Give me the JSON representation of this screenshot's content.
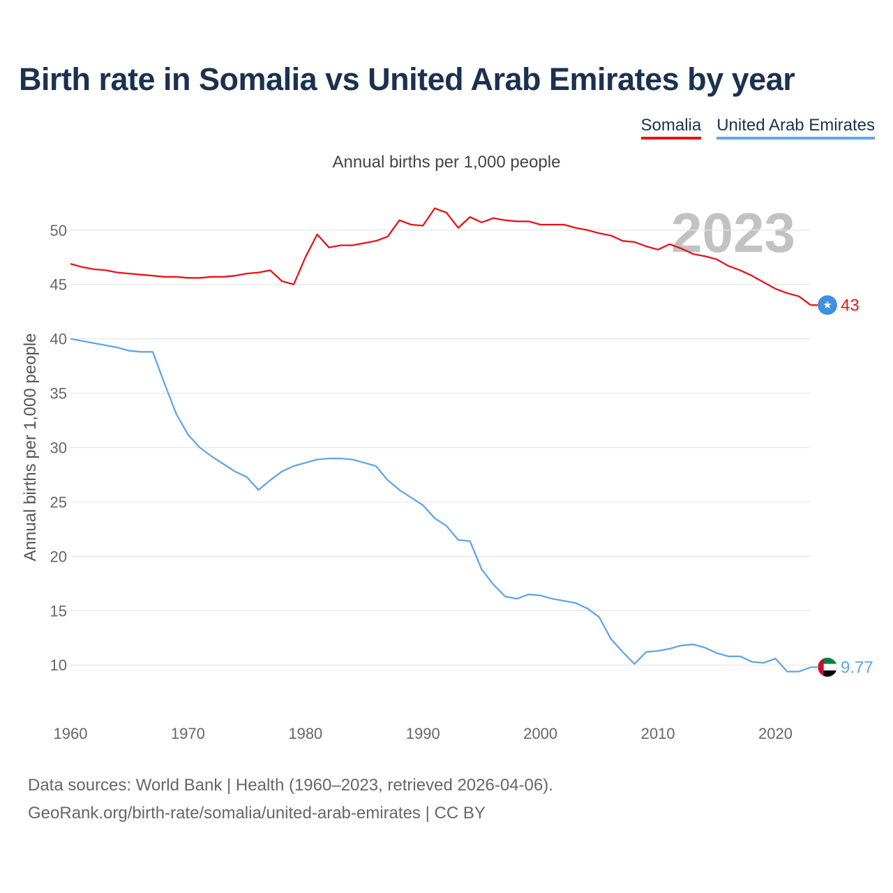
{
  "chart_data": {
    "type": "line",
    "title": "Birth rate in Somalia vs United Arab Emirates by year",
    "subtitle": "Annual births per 1,000 people",
    "ylabel": "Annual births per 1,000 people",
    "xlabel": "",
    "year_watermark": "2023",
    "xlim": [
      1960,
      2023
    ],
    "ylim": [
      7,
      53
    ],
    "x_ticks": [
      1960,
      1970,
      1980,
      1990,
      2000,
      2010,
      2020
    ],
    "y_ticks": [
      10,
      15,
      20,
      25,
      30,
      35,
      40,
      45,
      50
    ],
    "grid": true,
    "legend_position": "top-right",
    "x": [
      1960,
      1961,
      1962,
      1963,
      1964,
      1965,
      1966,
      1967,
      1968,
      1969,
      1970,
      1971,
      1972,
      1973,
      1974,
      1975,
      1976,
      1977,
      1978,
      1979,
      1980,
      1981,
      1982,
      1983,
      1984,
      1985,
      1986,
      1987,
      1988,
      1989,
      1990,
      1991,
      1992,
      1993,
      1994,
      1995,
      1996,
      1997,
      1998,
      1999,
      2000,
      2001,
      2002,
      2003,
      2004,
      2005,
      2006,
      2007,
      2008,
      2009,
      2010,
      2011,
      2012,
      2013,
      2014,
      2015,
      2016,
      2017,
      2018,
      2019,
      2020,
      2021,
      2022,
      2023
    ],
    "series": [
      {
        "name": "Somalia",
        "color": "#e8121b",
        "end_label": "43",
        "marker_icon": "somalia-flag-icon",
        "values": [
          46.9,
          46.6,
          46.4,
          46.3,
          46.1,
          46.0,
          45.9,
          45.8,
          45.7,
          45.7,
          45.6,
          45.6,
          45.7,
          45.7,
          45.8,
          46.0,
          46.1,
          46.3,
          45.3,
          45.0,
          47.5,
          49.6,
          48.4,
          48.6,
          48.6,
          48.8,
          49.0,
          49.4,
          50.9,
          50.5,
          50.4,
          52.0,
          51.6,
          50.2,
          51.2,
          50.7,
          51.1,
          50.9,
          50.8,
          50.8,
          50.5,
          50.5,
          50.5,
          50.2,
          50.0,
          49.7,
          49.5,
          49.0,
          48.9,
          48.5,
          48.2,
          48.7,
          48.3,
          47.8,
          47.6,
          47.3,
          46.7,
          46.3,
          45.8,
          45.2,
          44.6,
          44.2,
          43.9,
          43.1
        ]
      },
      {
        "name": "United Arab Emirates",
        "color": "#60a5e8",
        "end_label": "9.77",
        "marker_icon": "uae-flag-icon",
        "values": [
          40.0,
          39.8,
          39.6,
          39.4,
          39.2,
          38.9,
          38.8,
          38.8,
          35.9,
          33.1,
          31.2,
          30.0,
          29.2,
          28.5,
          27.8,
          27.3,
          26.1,
          27.0,
          27.8,
          28.3,
          28.6,
          28.9,
          29.0,
          29.0,
          28.9,
          28.6,
          28.3,
          27.0,
          26.1,
          25.4,
          24.7,
          23.5,
          22.8,
          21.5,
          21.4,
          18.8,
          17.4,
          16.3,
          16.1,
          16.5,
          16.4,
          16.1,
          15.9,
          15.7,
          15.2,
          14.4,
          12.4,
          11.2,
          10.1,
          11.2,
          11.3,
          11.5,
          11.8,
          11.9,
          11.6,
          11.1,
          10.8,
          10.8,
          10.3,
          10.2,
          10.6,
          9.4,
          9.4,
          9.8
        ]
      }
    ]
  },
  "legend": [
    {
      "label": "Somalia",
      "color": "#e8121b"
    },
    {
      "label": "United Arab Emirates",
      "color": "#60a5e8"
    }
  ],
  "source": {
    "line1": "Data sources: World Bank | Health (1960–2023, retrieved 2026-04-06).",
    "line2": "GeoRank.org/birth-rate/somalia/united-arab-emirates | CC BY"
  }
}
